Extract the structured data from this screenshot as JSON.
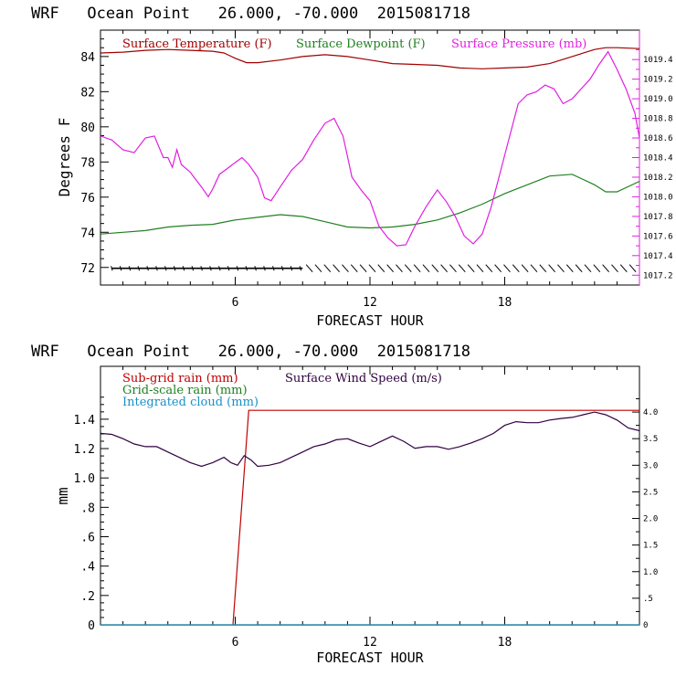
{
  "chart_data": [
    {
      "type": "line",
      "title": "WRF   Ocean Point   26.000, -70.000  2015081718",
      "xlabel": "FORECAST HOUR",
      "ylabel": "Degrees F",
      "xlim": [
        0,
        24
      ],
      "ylim": [
        71,
        85.5
      ],
      "y2lim": [
        1017.1,
        1019.7
      ],
      "x_ticks": [
        6,
        12,
        18
      ],
      "x_tick_labels": [
        "6",
        "12",
        "18"
      ],
      "y_ticks": [
        72,
        74,
        76,
        78,
        80,
        82,
        84
      ],
      "y_tick_labels": [
        "72",
        "74",
        "76",
        "78",
        "80",
        "82",
        "84"
      ],
      "y2_ticks": [
        1017.2,
        1017.4,
        1017.6,
        1017.8,
        1018.0,
        1018.2,
        1018.4,
        1018.6,
        1018.8,
        1019.0,
        1019.2,
        1019.4
      ],
      "y2_tick_labels": [
        "1017.2",
        "1017.4",
        "1017.6",
        "1017.8",
        "1018.0",
        "1018.2",
        "1018.4",
        "1018.6",
        "1018.8",
        "1019.0",
        "1019.2",
        "1019.4"
      ],
      "legend_placement": "top",
      "series": [
        {
          "name": "Surface Temperature (F)",
          "color": "#a00000",
          "axis": "left",
          "x": [
            0,
            1,
            2,
            3,
            4,
            5,
            5.5,
            6,
            6.5,
            7,
            8,
            9,
            10,
            11,
            12,
            13,
            14,
            15,
            16,
            17,
            18,
            19,
            20,
            21,
            22,
            22.5,
            23,
            24
          ],
          "y": [
            84.2,
            84.25,
            84.35,
            84.4,
            84.35,
            84.3,
            84.2,
            83.9,
            83.65,
            83.65,
            83.8,
            84.0,
            84.1,
            84.0,
            83.8,
            83.6,
            83.55,
            83.5,
            83.35,
            83.3,
            83.35,
            83.4,
            83.6,
            84.0,
            84.4,
            84.5,
            84.5,
            84.45
          ]
        },
        {
          "name": "Surface Dewpoint (F)",
          "color": "#208020",
          "axis": "left",
          "x": [
            0,
            1,
            2,
            3,
            4,
            5,
            6,
            7,
            8,
            9,
            10,
            11,
            12,
            13,
            14,
            15,
            16,
            17,
            18,
            19,
            20,
            21,
            22,
            22.5,
            23,
            24
          ],
          "y": [
            73.9,
            74.0,
            74.1,
            74.3,
            74.4,
            74.45,
            74.7,
            74.85,
            75.0,
            74.9,
            74.6,
            74.3,
            74.25,
            74.3,
            74.45,
            74.7,
            75.1,
            75.6,
            76.2,
            76.7,
            77.2,
            77.3,
            76.7,
            76.3,
            76.3,
            76.9
          ]
        },
        {
          "name": "Surface Pressure (mb)",
          "color": "#e020e0",
          "axis": "right",
          "x": [
            0,
            0.5,
            1,
            1.5,
            2,
            2.4,
            2.8,
            3,
            3.2,
            3.4,
            3.6,
            4,
            4.5,
            4.8,
            5,
            5.3,
            5.6,
            6,
            6.3,
            6.6,
            7,
            7.3,
            7.6,
            8,
            8.5,
            9,
            9.5,
            10,
            10.4,
            10.8,
            11.2,
            11.6,
            12,
            12.4,
            12.8,
            13.2,
            13.6,
            14,
            14.5,
            15,
            15.4,
            15.8,
            16.2,
            16.6,
            17,
            17.4,
            17.8,
            18.2,
            18.6,
            19,
            19.4,
            19.8,
            20.2,
            20.6,
            21,
            21.4,
            21.8,
            22.2,
            22.6,
            23,
            23.4,
            23.8,
            24
          ],
          "y": [
            1018.62,
            1018.58,
            1018.48,
            1018.45,
            1018.6,
            1018.62,
            1018.4,
            1018.4,
            1018.3,
            1018.48,
            1018.33,
            1018.25,
            1018.1,
            1018.0,
            1018.08,
            1018.23,
            1018.28,
            1018.35,
            1018.4,
            1018.33,
            1018.2,
            1017.99,
            1017.96,
            1018.1,
            1018.27,
            1018.38,
            1018.58,
            1018.75,
            1018.8,
            1018.62,
            1018.2,
            1018.07,
            1017.96,
            1017.7,
            1017.58,
            1017.5,
            1017.51,
            1017.7,
            1017.9,
            1018.07,
            1017.95,
            1017.8,
            1017.6,
            1017.52,
            1017.62,
            1017.9,
            1018.25,
            1018.6,
            1018.95,
            1019.04,
            1019.07,
            1019.14,
            1019.1,
            1018.95,
            1019.0,
            1019.1,
            1019.2,
            1019.35,
            1019.48,
            1019.3,
            1019.1,
            1018.85,
            1018.6
          ]
        }
      ],
      "wind_barbs": {
        "y": 71.95,
        "x_start": 0.5,
        "x_end": 24,
        "step": 0.4,
        "color": "#000000"
      }
    },
    {
      "type": "line",
      "title": "WRF   Ocean Point   26.000, -70.000  2015081718",
      "xlabel": "FORECAST HOUR",
      "ylabel": "mm",
      "xlim": [
        0,
        24
      ],
      "ylim": [
        0,
        1.76
      ],
      "y2lim": [
        0,
        4.86
      ],
      "x_ticks": [
        6,
        12,
        18
      ],
      "x_tick_labels": [
        "6",
        "12",
        "18"
      ],
      "y_ticks": [
        0,
        0.2,
        0.4,
        0.6,
        0.8,
        1.0,
        1.2,
        1.4
      ],
      "y_tick_labels": [
        "0",
        ".2",
        ".4",
        ".6",
        ".8",
        "1.0",
        "1.2",
        "1.4"
      ],
      "y2_ticks": [
        0,
        0.5,
        1.0,
        1.5,
        2.0,
        2.5,
        3.0,
        3.5,
        4.0
      ],
      "y2_tick_labels": [
        "0",
        ".5",
        "1.0",
        "1.5",
        "2.0",
        "2.5",
        "3.0",
        "3.5",
        "4.0"
      ],
      "legend_placement": "top-left",
      "series": [
        {
          "name": "Sub-grid rain (mm)",
          "color": "#c00000",
          "axis": "left",
          "x": [
            5.9,
            6.6,
            24
          ],
          "y": [
            0,
            1.46,
            1.46
          ]
        },
        {
          "name": "Grid-scale rain (mm)",
          "color": "#208020",
          "axis": "left",
          "x": [
            0,
            24
          ],
          "y": [
            0,
            0
          ]
        },
        {
          "name": "Integrated cloud (mm)",
          "color": "#1890c8",
          "axis": "left",
          "x": [
            0,
            24
          ],
          "y": [
            0,
            0
          ]
        },
        {
          "name": "Surface Wind Speed (m/s)",
          "color": "#300040",
          "axis": "right",
          "x": [
            0,
            0.5,
            1,
            1.5,
            2,
            2.5,
            3,
            3.5,
            4,
            4.5,
            5,
            5.5,
            5.8,
            6.1,
            6.4,
            6.7,
            7,
            7.5,
            8,
            8.5,
            9,
            9.5,
            10,
            10.5,
            11,
            11.5,
            12,
            12.5,
            13,
            13.5,
            14,
            14.5,
            15,
            15.5,
            16,
            16.5,
            17,
            17.5,
            18,
            18.5,
            19,
            19.5,
            20,
            20.5,
            21,
            21.5,
            22,
            22.5,
            23,
            23.5,
            24
          ],
          "y": [
            3.6,
            3.58,
            3.5,
            3.4,
            3.35,
            3.35,
            3.25,
            3.15,
            3.05,
            2.98,
            3.05,
            3.15,
            3.05,
            3.0,
            3.18,
            3.1,
            2.98,
            3.0,
            3.05,
            3.15,
            3.25,
            3.35,
            3.4,
            3.48,
            3.5,
            3.42,
            3.35,
            3.45,
            3.55,
            3.45,
            3.32,
            3.35,
            3.35,
            3.3,
            3.35,
            3.42,
            3.5,
            3.6,
            3.75,
            3.82,
            3.8,
            3.8,
            3.85,
            3.88,
            3.9,
            3.95,
            4.0,
            3.95,
            3.85,
            3.7,
            3.65
          ]
        }
      ]
    }
  ]
}
